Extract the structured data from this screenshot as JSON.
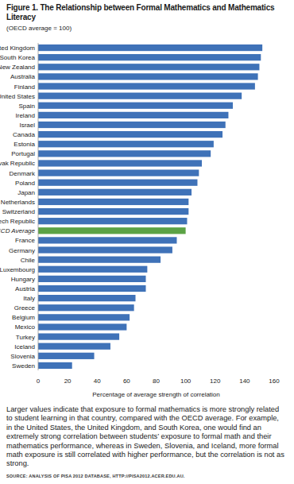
{
  "chart_data": {
    "type": "bar",
    "orientation": "horizontal",
    "title": "Figure 1. The Relationship between Formal Mathematics and Mathematics Literacy",
    "subtitle": "(OECD average = 100)",
    "xlabel": "Percentage of average strength of correlation",
    "caption": "Larger values indicate that exposure to formal mathematics is more strongly related to student learning in that country, compared with the OECD average. For example, in the United States, the United Kingdom, and South Korea, one would find an extremely strong correlation between students’ exposure to formal math and their mathematics performance, whereas in Sweden, Slovenia, and Iceland, more formal math exposure is still correlated with higher performance, but the correlation is not as strong.",
    "source": "SOURCE: ANALYSIS OF PISA 2012 DATABASE, HTTP://PISA2012.ACER.EDU.AU.",
    "categories": [
      "United Kingdom",
      "South Korea",
      "New Zealand",
      "Australia",
      "Finland",
      "United States",
      "Spain",
      "Ireland",
      "Israel",
      "Canada",
      "Estonia",
      "Portugal",
      "Slovak Republic",
      "Denmark",
      "Poland",
      "Japan",
      "Netherlands",
      "Switzerland",
      "Czech Republic",
      "OECD Average",
      "France",
      "Germany",
      "Chile",
      "Luxembourg",
      "Hungary",
      "Austria",
      "Italy",
      "Greece",
      "Belgium",
      "Mexico",
      "Turkey",
      "Iceland",
      "Slovenia",
      "Sweden"
    ],
    "values": [
      152,
      151,
      150,
      149,
      147,
      138,
      132,
      129,
      127,
      125,
      119,
      117,
      111,
      109,
      108,
      104,
      102,
      102,
      101,
      100,
      94,
      91,
      83,
      74,
      73,
      73,
      66,
      65,
      62,
      60,
      55,
      49,
      38,
      23
    ],
    "color": "#3f72b8",
    "colors": [
      "#3f72b8",
      "#3f72b8",
      "#3f72b8",
      "#3f72b8",
      "#3f72b8",
      "#3f72b8",
      "#3f72b8",
      "#3f72b8",
      "#3f72b8",
      "#3f72b8",
      "#3f72b8",
      "#3f72b8",
      "#3f72b8",
      "#3f72b8",
      "#3f72b8",
      "#3f72b8",
      "#3f72b8",
      "#3f72b8",
      "#3f72b8",
      "#5ba245",
      "#3f72b8",
      "#3f72b8",
      "#3f72b8",
      "#3f72b8",
      "#3f72b8",
      "#3f72b8",
      "#3f72b8",
      "#3f72b8",
      "#3f72b8",
      "#3f72b8",
      "#3f72b8",
      "#3f72b8",
      "#3f72b8",
      "#3f72b8"
    ],
    "xlim": [
      0,
      160
    ],
    "xticks": [
      0,
      20,
      40,
      60,
      80,
      100,
      120,
      140,
      160
    ],
    "grid": false
  }
}
